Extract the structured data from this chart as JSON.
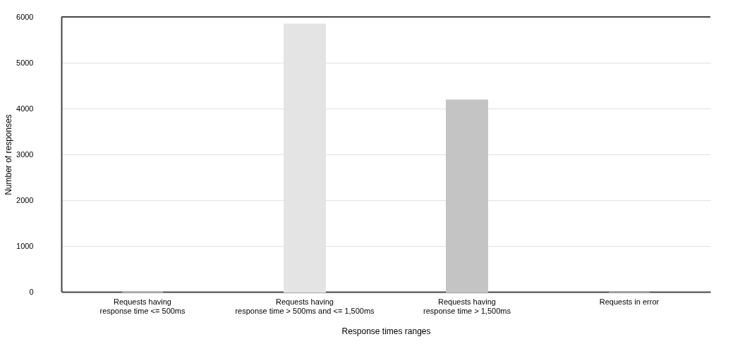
{
  "chart_data": {
    "type": "bar",
    "xlabel": "Response times ranges",
    "ylabel": "Number of responses",
    "categories": [
      "Requests having\nresponse time <= 500ms",
      "Requests having\nresponse time > 500ms and <= 1,500ms",
      "Requests having\nresponse time > 1,500ms",
      "Requests in error"
    ],
    "values": [
      0,
      5840,
      4180,
      0
    ],
    "colors": [
      "#b0b0b0",
      "#e4e4e4",
      "#c4c4c4",
      "#a0a0a0"
    ],
    "ylim": [
      0,
      6000
    ],
    "yticks": [
      0,
      1000,
      2000,
      3000,
      4000,
      5000,
      6000
    ],
    "grid": "y"
  }
}
